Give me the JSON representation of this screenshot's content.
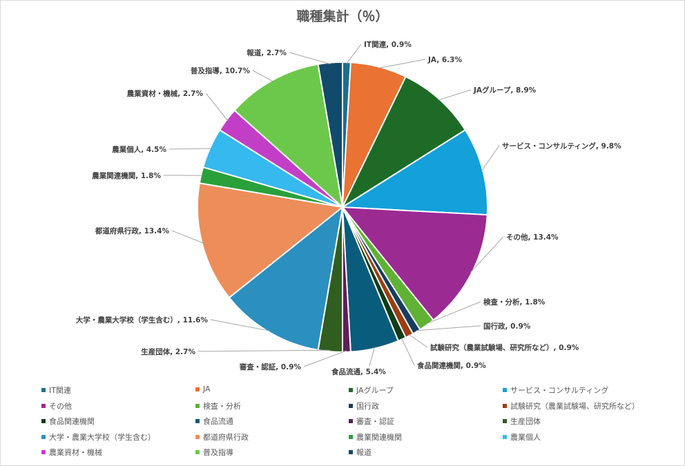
{
  "chart_data": {
    "type": "pie",
    "title": "職種集計（％）",
    "unit": "%",
    "slices": [
      {
        "label": "IT関連",
        "value": 0.9,
        "display": "0.9%",
        "color": "#1f6e8c"
      },
      {
        "label": "JA",
        "value": 6.3,
        "display": "6.3%",
        "color": "#ea7232"
      },
      {
        "label": "JAグループ",
        "value": 8.9,
        "display": "8.9%",
        "color": "#1d6b27"
      },
      {
        "label": "サービス・コンサルティング",
        "value": 9.8,
        "display": "9.8%",
        "color": "#14a0d9"
      },
      {
        "label": "その他",
        "value": 13.4,
        "display": "13.4%",
        "color": "#9b2a93"
      },
      {
        "label": "検査・分析",
        "value": 1.8,
        "display": "1.8%",
        "color": "#5fb234"
      },
      {
        "label": "国行政",
        "value": 0.9,
        "display": "0.9%",
        "color": "#153d5e"
      },
      {
        "label": "試験研究（農業試験場、研究所など）",
        "value": 0.9,
        "display": "0.9%",
        "color": "#9c3d10"
      },
      {
        "label": "食品関連機関",
        "value": 0.9,
        "display": "0.9%",
        "color": "#0f3d17"
      },
      {
        "label": "食品流通",
        "value": 5.4,
        "display": "5.4%",
        "color": "#0a5c7d"
      },
      {
        "label": "審査・認証",
        "value": 0.9,
        "display": "0.9%",
        "color": "#5e1f5a"
      },
      {
        "label": "生産団体",
        "value": 2.7,
        "display": "2.7%",
        "color": "#2f5e20"
      },
      {
        "label": "大学・農業大学校（学生含む）",
        "value": 11.6,
        "display": "11.6%",
        "color": "#2b8fbf"
      },
      {
        "label": "都道府県行政",
        "value": 13.4,
        "display": "13.4%",
        "color": "#ed8d5a"
      },
      {
        "label": "農業関連機関",
        "value": 1.8,
        "display": "1.8%",
        "color": "#2aa03a"
      },
      {
        "label": "農業個人",
        "value": 4.5,
        "display": "4.5%",
        "color": "#36b9ef"
      },
      {
        "label": "農業資材・機械",
        "value": 2.7,
        "display": "2.7%",
        "color": "#c33ec7"
      },
      {
        "label": "普及指導",
        "value": 10.7,
        "display": "10.7%",
        "color": "#6cc84a"
      },
      {
        "label": "報道",
        "value": 2.7,
        "display": "2.7%",
        "color": "#124a6b"
      }
    ],
    "legend_position": "bottom"
  }
}
